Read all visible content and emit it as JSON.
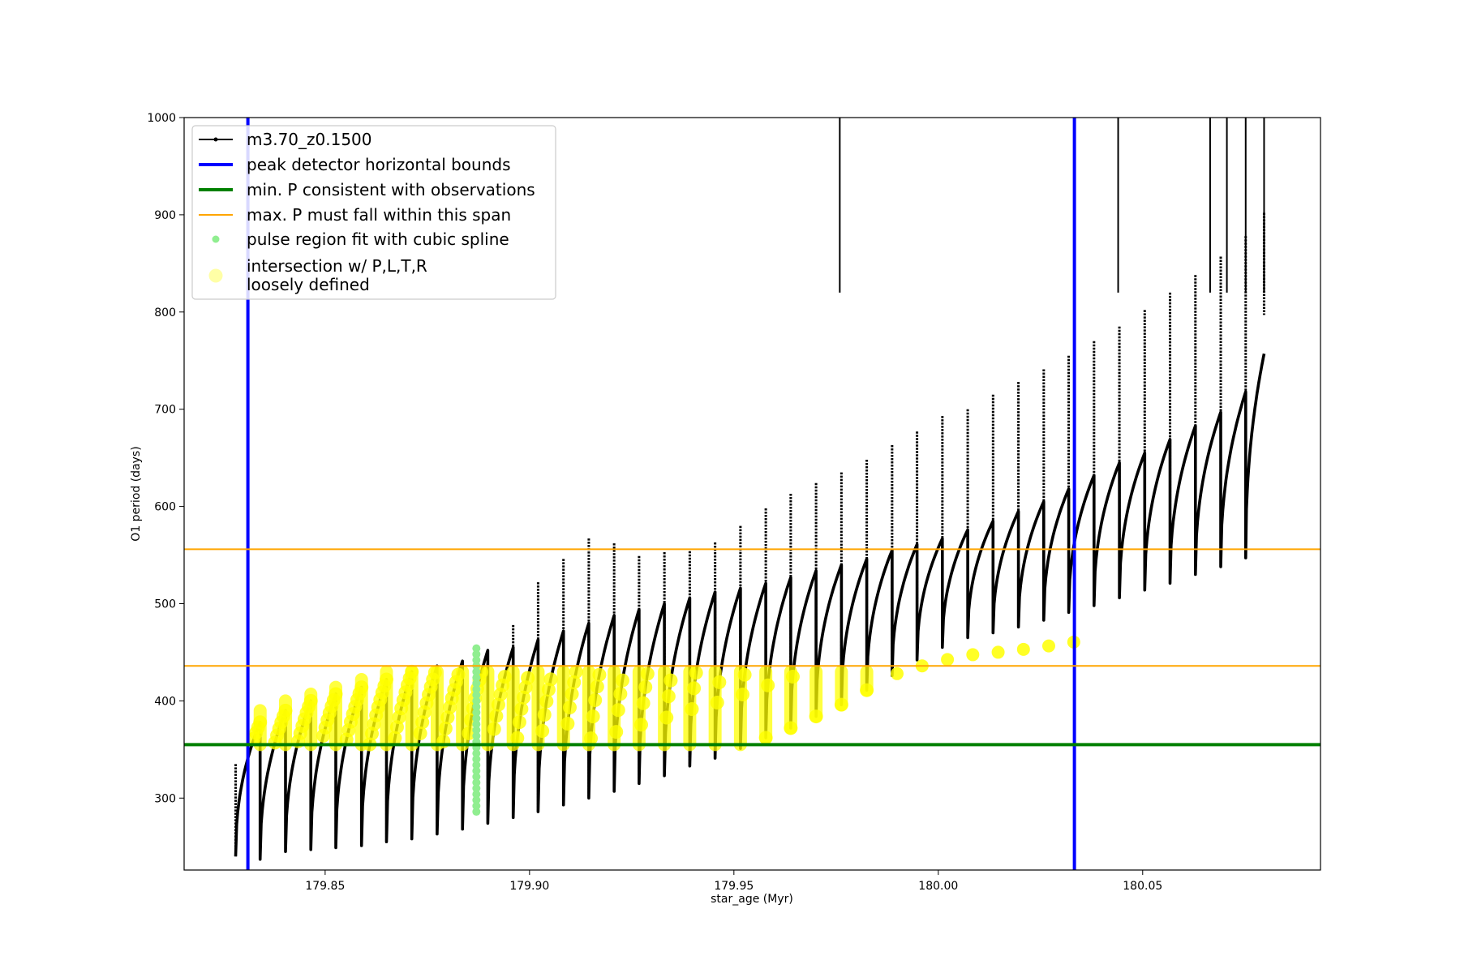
{
  "chart_data": {
    "type": "line",
    "title": "",
    "xlabel": "star_age (Myr)",
    "ylabel": "O1 period (days)",
    "xlim": [
      179.8155,
      180.0935
    ],
    "ylim": [
      226,
      1000
    ],
    "x_ticks": [
      179.85,
      179.9,
      179.95,
      180.0,
      180.05
    ],
    "x_tick_labels": [
      "179.85",
      "179.90",
      "179.95",
      "180.00",
      "180.05"
    ],
    "y_ticks": [
      300,
      400,
      500,
      600,
      700,
      800,
      900,
      1000
    ],
    "y_tick_labels": [
      "300",
      "400",
      "500",
      "600",
      "700",
      "800",
      "900",
      "1000"
    ],
    "grid": false,
    "legend_position": "upper-left",
    "colors": {
      "track": "#000000",
      "bounds": "#0000ff",
      "min_p": "#008000",
      "max_p_span": "#ffa500",
      "spline": "#90ee90",
      "intersection": "#ffff00"
    },
    "series": [
      {
        "name": "m3.70_z0.1500",
        "kind": "pulse-track",
        "pulse_starts": [
          179.8281,
          179.8341,
          179.8403,
          179.8465,
          179.8526,
          179.8589,
          179.865,
          179.8712,
          179.8774,
          179.8836,
          179.8898,
          179.896,
          179.9021,
          179.9083,
          179.9145,
          179.9207,
          179.9268,
          179.933,
          179.9392,
          179.9454,
          179.9516,
          179.9578,
          179.9639,
          179.9701,
          179.9763,
          179.9825,
          179.9887,
          179.9948,
          180.001,
          180.0072,
          180.0134,
          180.0196,
          180.0258,
          180.0319,
          180.0381,
          180.0443,
          180.0505,
          180.0567,
          180.0629,
          180.0691,
          180.0752,
          180.0797
        ],
        "minima": [
          240,
          237,
          245,
          247,
          249,
          251,
          255,
          258,
          263,
          268,
          274,
          280,
          286,
          293,
          300,
          307,
          315,
          323,
          333,
          341,
          351,
          362,
          372,
          384,
          396,
          411,
          426,
          442,
          455,
          465,
          470,
          476,
          483,
          491,
          498,
          506,
          514,
          521,
          530,
          538,
          547
        ],
        "maxima": [
          378,
          390,
          400,
          407,
          414,
          422,
          430,
          436,
          441,
          452,
          455,
          463,
          472,
          480,
          488,
          494,
          500,
          506,
          512,
          516,
          521,
          527,
          534,
          540,
          546,
          555,
          561,
          567,
          576,
          585,
          595,
          605,
          618,
          632,
          645,
          655,
          669,
          683,
          697,
          718,
          757,
          797
        ],
        "spikes": [
          335,
          335,
          343,
          352,
          365,
          378,
          398,
          417,
          432,
          439,
          451,
          478,
          522,
          546,
          567,
          562,
          549,
          553,
          554,
          563,
          580,
          598,
          613,
          624,
          635,
          648,
          663,
          677,
          693,
          700,
          715,
          728,
          741,
          755,
          770,
          785,
          802,
          820,
          838,
          857,
          878,
          902
        ]
      },
      {
        "name": "peak detector horizontal bounds",
        "kind": "vlines",
        "x": [
          179.8311,
          180.0333
        ]
      },
      {
        "name": "min. P consistent with observations",
        "kind": "hline",
        "y": [
          355
        ]
      },
      {
        "name": "max. P must fall within this span",
        "kind": "hlines",
        "y": [
          436,
          556
        ]
      },
      {
        "name": "pulse region fit with cubic spline",
        "kind": "points",
        "x": 179.887,
        "y_range": [
          286,
          454
        ]
      },
      {
        "name": "intersection w/ P,L,T,R\nloosely defined",
        "kind": "points"
      }
    ],
    "legend": [
      {
        "label": "m3.70_z0.1500",
        "style": "line-dot",
        "color": "#000000"
      },
      {
        "label": "peak detector horizontal bounds",
        "style": "thick-line",
        "color": "#0000ff"
      },
      {
        "label": "min. P consistent with observations",
        "style": "thick-line",
        "color": "#008000"
      },
      {
        "label": "max. P must fall within this span",
        "style": "thin-line",
        "color": "#ffa500"
      },
      {
        "label": "pulse region fit with cubic spline",
        "style": "dot",
        "color": "#90ee90"
      },
      {
        "label_lines": [
          "intersection w/ P,L,T,R",
          "loosely defined"
        ],
        "style": "big-dot",
        "color": "#ffff00"
      }
    ]
  }
}
